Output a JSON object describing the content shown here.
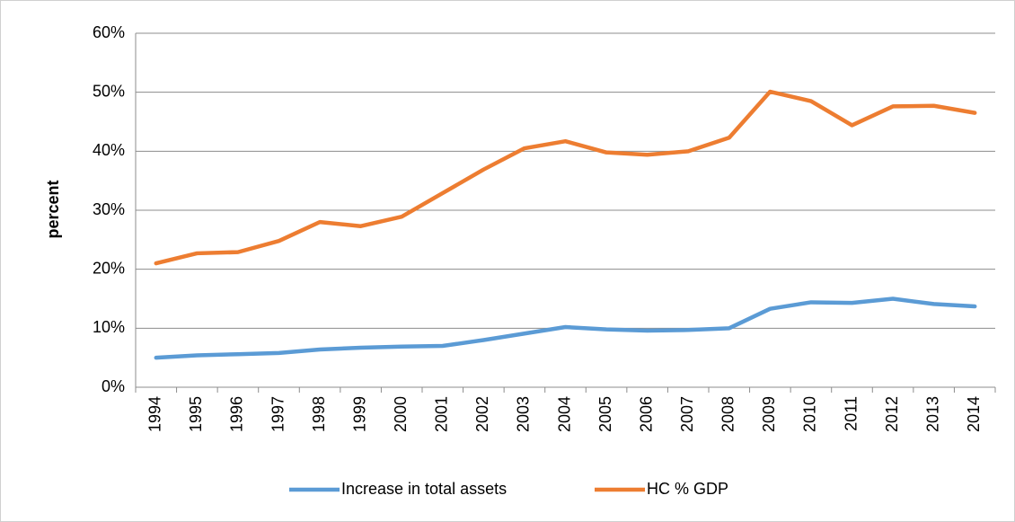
{
  "chart_data": {
    "type": "line",
    "y_label": "percent",
    "categories": [
      "1994",
      "1995",
      "1996",
      "1997",
      "1998",
      "1999",
      "2000",
      "2001",
      "2002",
      "2003",
      "2004",
      "2005",
      "2006",
      "2007",
      "2008",
      "2009",
      "2010",
      "2011",
      "2012",
      "2013",
      "2014"
    ],
    "series": [
      {
        "name": "Increase in total assets",
        "color": "#5b9bd5",
        "values": [
          5.0,
          5.4,
          5.6,
          5.8,
          6.4,
          6.7,
          6.9,
          7.0,
          8.0,
          9.1,
          10.2,
          9.8,
          9.6,
          9.7,
          10.0,
          13.3,
          14.4,
          14.3,
          15.0,
          14.1,
          13.7
        ]
      },
      {
        "name": "HC % GDP",
        "color": "#ed7d31",
        "values": [
          21.0,
          22.7,
          22.9,
          24.8,
          28.0,
          27.3,
          28.9,
          32.9,
          36.9,
          40.5,
          41.7,
          39.8,
          39.4,
          40.0,
          42.3,
          50.1,
          48.5,
          44.4,
          47.6,
          47.7,
          46.5
        ]
      }
    ],
    "ylim": [
      0,
      60
    ],
    "yticks": [
      {
        "value": 0,
        "label": "0%"
      },
      {
        "value": 10,
        "label": "10%"
      },
      {
        "value": 20,
        "label": "20%"
      },
      {
        "value": 30,
        "label": "30%"
      },
      {
        "value": 40,
        "label": "40%"
      },
      {
        "value": 50,
        "label": "50%"
      },
      {
        "value": 60,
        "label": "60%"
      }
    ],
    "grid": true,
    "legend": "bottom"
  }
}
